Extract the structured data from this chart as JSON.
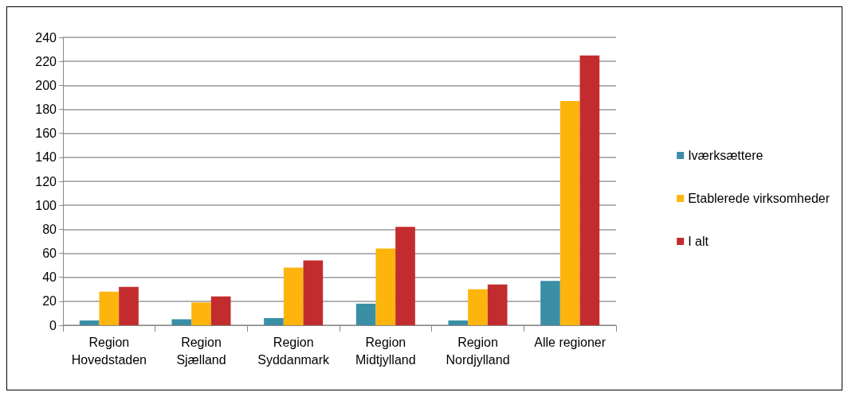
{
  "chart_data": {
    "type": "bar",
    "categories": [
      "Region\nHovedstaden",
      "Region\nSjælland",
      "Region\nSyddanmark",
      "Region\nMidtjylland",
      "Region\nNordjylland",
      "Alle regioner"
    ],
    "series": [
      {
        "name": "Iværksættere",
        "color": "#3a8fa6",
        "values": [
          4,
          5,
          6,
          18,
          4,
          37
        ]
      },
      {
        "name": "Etablerede virksomheder",
        "color": "#fdb50d",
        "values": [
          28,
          19,
          48,
          64,
          30,
          187
        ]
      },
      {
        "name": "I alt",
        "color": "#c32c2e",
        "values": [
          32,
          24,
          54,
          82,
          34,
          225
        ]
      }
    ],
    "ylim": [
      0,
      240
    ],
    "yticks": [
      0,
      20,
      40,
      60,
      80,
      100,
      120,
      140,
      160,
      180,
      200,
      220,
      240
    ],
    "grid": "y",
    "legend": "right"
  }
}
